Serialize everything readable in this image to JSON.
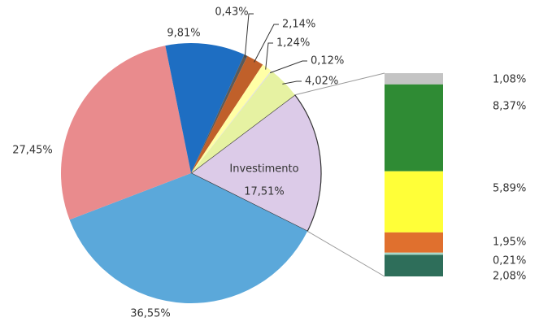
{
  "chart_data": {
    "type": "pie",
    "categories": [
      "Investimento",
      null,
      null,
      null,
      null,
      null,
      null,
      null,
      null
    ],
    "values": [
      17.51,
      36.55,
      27.45,
      9.81,
      0.43,
      2.14,
      1.24,
      0.12,
      4.02
    ],
    "value_labels": [
      "17,51%",
      "36,55%",
      "27,45%",
      "9,81%",
      "0,43%",
      "2,14%",
      "1,24%",
      "0,12%",
      "4,02%"
    ],
    "colors": [
      "#dccbe8",
      "#5ba8da",
      "#e98b8d",
      "#1e6ec2",
      "#5a5a5a",
      "#c0602a",
      "#ffffa6",
      "#dcdcdc",
      "#e6f2a2"
    ],
    "bar": {
      "values": [
        1.08,
        8.37,
        5.89,
        1.95,
        0.21,
        2.08
      ],
      "value_labels": [
        "1,08%",
        "8,37%",
        "5,89%",
        "1,95%",
        "0,21%",
        "2,08%"
      ],
      "colors": [
        "#c4c4c4",
        "#2f8b34",
        "#ffff38",
        "#e0702e",
        "#a8d8c8",
        "#2e6e5a"
      ]
    }
  }
}
